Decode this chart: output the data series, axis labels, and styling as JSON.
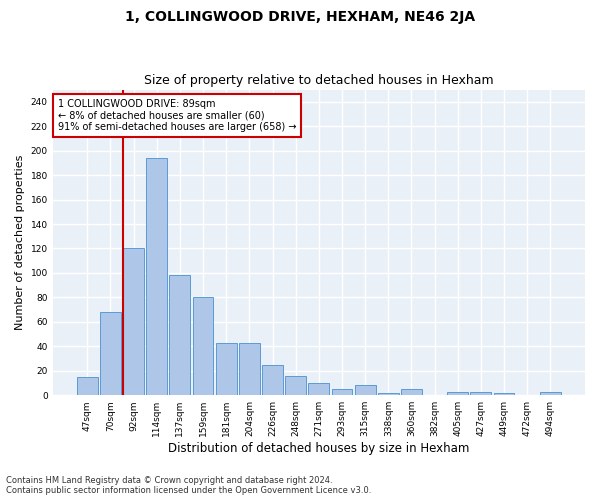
{
  "title": "1, COLLINGWOOD DRIVE, HEXHAM, NE46 2JA",
  "subtitle": "Size of property relative to detached houses in Hexham",
  "xlabel": "Distribution of detached houses by size in Hexham",
  "ylabel": "Number of detached properties",
  "categories": [
    "47sqm",
    "70sqm",
    "92sqm",
    "114sqm",
    "137sqm",
    "159sqm",
    "181sqm",
    "204sqm",
    "226sqm",
    "248sqm",
    "271sqm",
    "293sqm",
    "315sqm",
    "338sqm",
    "360sqm",
    "382sqm",
    "405sqm",
    "427sqm",
    "449sqm",
    "472sqm",
    "494sqm"
  ],
  "values": [
    15,
    68,
    120,
    194,
    98,
    80,
    43,
    43,
    25,
    16,
    10,
    5,
    8,
    2,
    5,
    0,
    3,
    3,
    2,
    0,
    3
  ],
  "bar_color": "#aec6e8",
  "bar_edge_color": "#5b9bd5",
  "background_color": "#eaf0f8",
  "grid_color": "#ffffff",
  "vline_color": "#cc0000",
  "annotation_box_color": "#cc0000",
  "ylim": [
    0,
    250
  ],
  "yticks": [
    0,
    20,
    40,
    60,
    80,
    100,
    120,
    140,
    160,
    180,
    200,
    220,
    240
  ],
  "footer_line1": "Contains HM Land Registry data © Crown copyright and database right 2024.",
  "footer_line2": "Contains public sector information licensed under the Open Government Licence v3.0.",
  "title_fontsize": 10,
  "subtitle_fontsize": 9,
  "tick_fontsize": 6.5,
  "ylabel_fontsize": 8,
  "xlabel_fontsize": 8.5,
  "footer_fontsize": 6,
  "ann_line1": "1 COLLINGWOOD DRIVE: 89sqm",
  "ann_line2": "← 8% of detached houses are smaller (60)",
  "ann_line3": "91% of semi-detached houses are larger (658) →"
}
